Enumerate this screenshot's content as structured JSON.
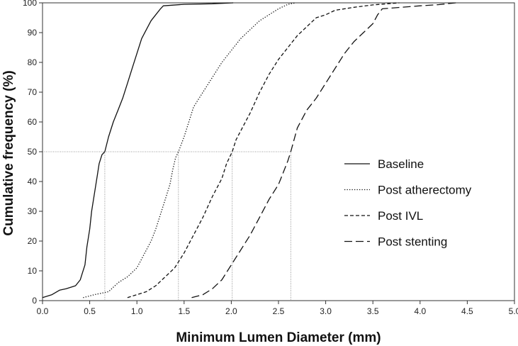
{
  "chart_data": {
    "type": "line",
    "xlabel": "Minimum Lumen Diameter (mm)",
    "ylabel": "Cumulative frequency (%)",
    "xlim": [
      0,
      5
    ],
    "ylim": [
      0,
      100
    ],
    "xticks": [
      "0.0",
      "0.5",
      "1.0",
      "1.5",
      "2.0",
      "2.5",
      "3.0",
      "3.5",
      "4.0",
      "4.5",
      "5.0"
    ],
    "yticks": [
      "0",
      "10",
      "20",
      "30",
      "40",
      "50",
      "60",
      "70",
      "80",
      "90",
      "100"
    ],
    "legend_position": "right",
    "grid": false,
    "reference_line": {
      "y": 50
    },
    "medians": [
      0.66,
      1.44,
      2.01,
      2.63
    ],
    "series": [
      {
        "name": "Baseline",
        "dash": "solid",
        "x": [
          0.0,
          0.1,
          0.18,
          0.25,
          0.3,
          0.35,
          0.4,
          0.42,
          0.45,
          0.47,
          0.5,
          0.52,
          0.55,
          0.58,
          0.6,
          0.63,
          0.66,
          0.7,
          0.75,
          0.8,
          0.85,
          0.9,
          0.95,
          1.0,
          1.05,
          1.1,
          1.15,
          1.2,
          1.25,
          1.28,
          1.5,
          1.8,
          2.02
        ],
        "y": [
          1,
          2,
          3.5,
          4,
          4.5,
          5,
          7,
          9,
          12,
          18,
          24,
          30,
          36,
          42,
          46,
          49,
          50,
          55,
          60,
          64,
          68,
          73,
          78,
          83,
          88,
          91,
          94,
          96,
          98,
          99,
          99.5,
          99.7,
          100
        ]
      },
      {
        "name": "Post atherectomy",
        "dash": "dotted",
        "x": [
          0.43,
          0.55,
          0.7,
          0.8,
          0.9,
          1.0,
          1.05,
          1.1,
          1.15,
          1.2,
          1.25,
          1.3,
          1.35,
          1.38,
          1.41,
          1.44,
          1.5,
          1.55,
          1.6,
          1.7,
          1.8,
          1.9,
          2.0,
          2.1,
          2.2,
          2.3,
          2.4,
          2.5,
          2.6,
          2.68
        ],
        "y": [
          1,
          2,
          3,
          6,
          8,
          11,
          14,
          17,
          20,
          24,
          29,
          34,
          39,
          44,
          48,
          50,
          55,
          60,
          65,
          70,
          75,
          80,
          84,
          88,
          91,
          94,
          96,
          98,
          99.5,
          100
        ]
      },
      {
        "name": "Post IVL",
        "dash": "dashed",
        "x": [
          0.9,
          1.0,
          1.1,
          1.2,
          1.3,
          1.4,
          1.5,
          1.6,
          1.7,
          1.8,
          1.9,
          1.95,
          2.01,
          2.05,
          2.1,
          2.2,
          2.3,
          2.4,
          2.5,
          2.6,
          2.7,
          2.8,
          2.9,
          3.0,
          3.1,
          3.3,
          3.5,
          3.78
        ],
        "y": [
          1,
          2,
          3,
          5,
          8,
          11,
          16,
          22,
          28,
          35,
          41,
          46,
          50,
          54,
          57,
          63,
          70,
          76,
          81,
          85,
          89,
          92,
          95,
          96,
          97.5,
          98.5,
          99.3,
          100
        ]
      },
      {
        "name": "Post stenting",
        "dash": "longdash",
        "x": [
          1.58,
          1.7,
          1.8,
          1.9,
          2.0,
          2.1,
          2.2,
          2.3,
          2.4,
          2.5,
          2.55,
          2.6,
          2.63,
          2.7,
          2.8,
          2.9,
          3.0,
          3.1,
          3.2,
          3.3,
          3.4,
          3.5,
          3.55,
          3.6,
          3.8,
          4.0,
          4.2,
          4.38
        ],
        "y": [
          1,
          2,
          4,
          7,
          12,
          17,
          22,
          28,
          34,
          39,
          43,
          47,
          50,
          58,
          64,
          68,
          73,
          78,
          83,
          87,
          90,
          93,
          96,
          98,
          98.5,
          99,
          99.4,
          100
        ]
      }
    ]
  }
}
